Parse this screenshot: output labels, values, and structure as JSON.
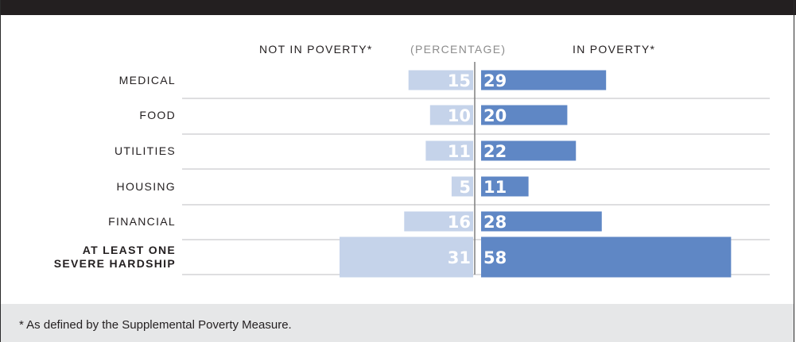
{
  "chart_data": {
    "type": "bar",
    "subtype": "diverging-horizontal",
    "left_header": "NOT IN POVERTY*",
    "center_header": "(PERCENTAGE)",
    "right_header": "IN POVERTY*",
    "categories": [
      "MEDICAL",
      "FOOD",
      "UTILITIES",
      "HOUSING",
      "FINANCIAL",
      "AT LEAST ONE SEVERE HARDSHIP"
    ],
    "category_lines": [
      [
        "MEDICAL"
      ],
      [
        "FOOD"
      ],
      [
        "UTILITIES"
      ],
      [
        "HOUSING"
      ],
      [
        "FINANCIAL"
      ],
      [
        "AT LEAST ONE",
        "SEVERE HARDSHIP"
      ]
    ],
    "bold_category_index": 5,
    "series": [
      {
        "name": "NOT IN POVERTY*",
        "side": "left",
        "color": "#c5d3ea",
        "values": [
          15,
          10,
          11,
          5,
          16,
          31
        ]
      },
      {
        "name": "IN POVERTY*",
        "side": "right",
        "color": "#5f87c5",
        "values": [
          29,
          20,
          22,
          11,
          28,
          58
        ]
      }
    ]
  },
  "footnote": "* As defined by the Supplemental Poverty Measure.",
  "colors": {
    "top_bar": "#231f20",
    "footer_bg": "#e6e7e8",
    "divider": "#7f7f7f",
    "row_line": "#bcbec0"
  }
}
